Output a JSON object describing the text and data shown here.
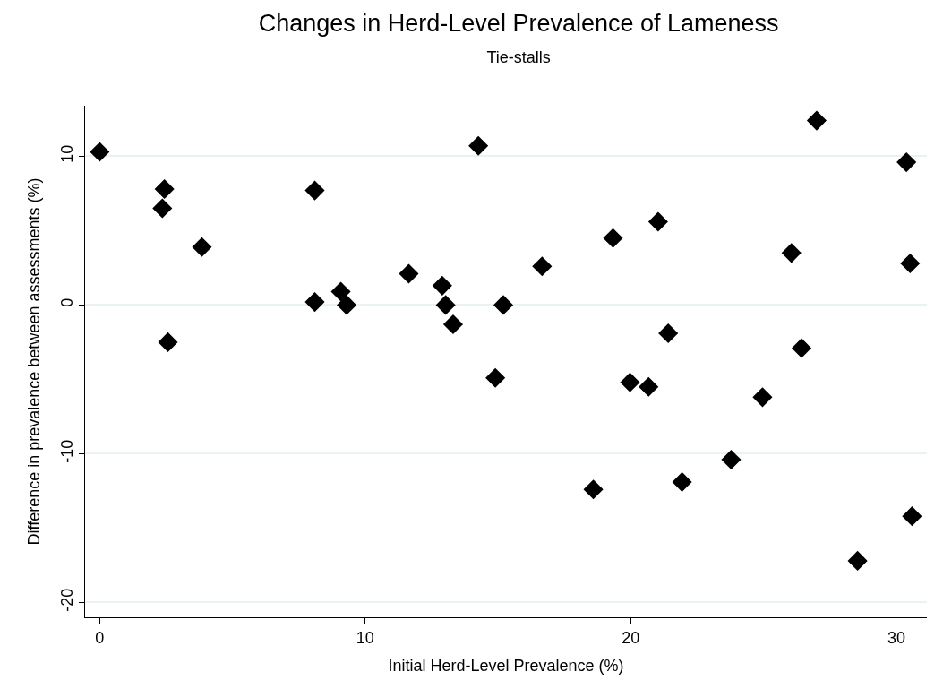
{
  "chart_data": {
    "type": "scatter",
    "title": "Changes in Herd-Level Prevalence of Lameness",
    "subtitle": "Tie-stalls",
    "xlabel": "Initial Herd-Level Prevalence (%)",
    "ylabel": "Difference in prevalence between assessments (%)",
    "xlim": [
      -0.55,
      31.15
    ],
    "xticks": [
      0,
      10,
      20,
      30
    ],
    "ylim": [
      -21,
      13.4
    ],
    "yticks": [
      -20,
      -10,
      0,
      10
    ],
    "grid": "y",
    "marker": "diamond",
    "series": [
      {
        "color": "#000000",
        "x": [
          0,
          2.44,
          2.36,
          3.85,
          2.57,
          8.1,
          8.1,
          9.08,
          9.3,
          11.64,
          12.9,
          13.03,
          13.31,
          14.26,
          15.2,
          14.9,
          27.0,
          30.38,
          21.03,
          19.33,
          26.05,
          30.52,
          16.66,
          21.41,
          26.43,
          19.97,
          20.67,
          24.96,
          23.78,
          18.59,
          21.93,
          30.59,
          28.54
        ],
        "values": [
          10.3,
          7.8,
          6.5,
          3.9,
          -2.5,
          7.7,
          0.2,
          0.9,
          0,
          2.1,
          1.3,
          0,
          -1.3,
          10.7,
          0,
          -4.9,
          12.4,
          9.6,
          5.6,
          4.5,
          3.5,
          2.8,
          2.6,
          -1.9,
          -2.9,
          -5.2,
          -5.5,
          -6.2,
          -10.4,
          -12.4,
          -11.9,
          -14.2,
          -17.2
        ]
      }
    ]
  }
}
